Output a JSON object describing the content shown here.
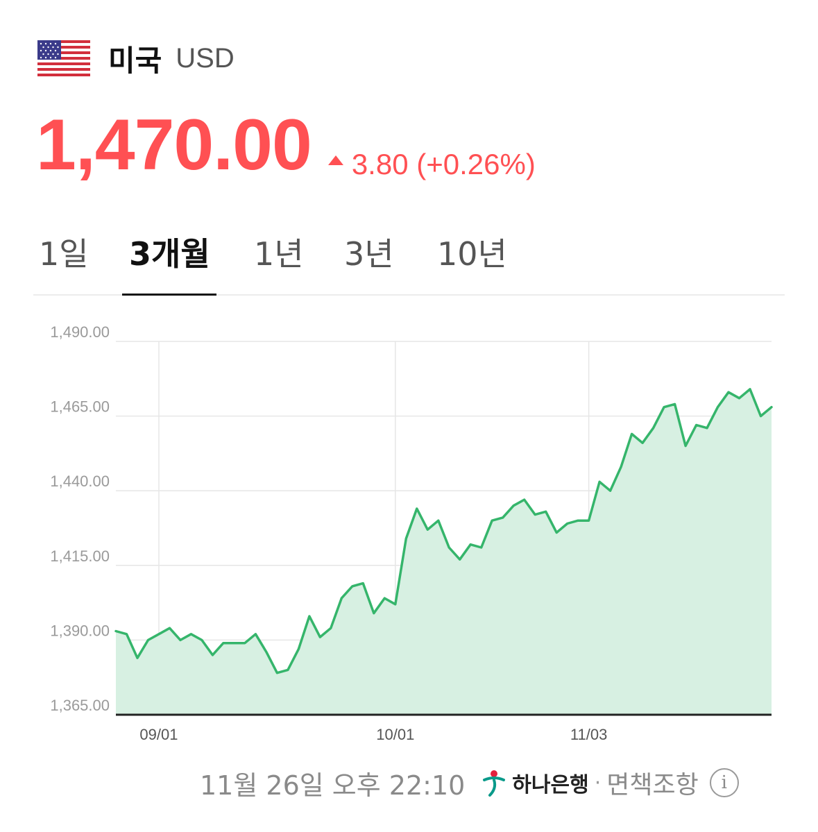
{
  "header": {
    "country": "미국",
    "currency_code": "USD",
    "flag_icon": "us-flag-icon"
  },
  "quote": {
    "price": "1,470.00",
    "direction": "up",
    "change": "3.80 (+0.26%)",
    "color": "#ff5053"
  },
  "tabs": [
    {
      "label": "1일",
      "active": false
    },
    {
      "label": "3개월",
      "active": true
    },
    {
      "label": "1년",
      "active": false
    },
    {
      "label": "3년",
      "active": false
    },
    {
      "label": "10년",
      "active": false
    }
  ],
  "chart_data": {
    "type": "area",
    "line_color": "#35b56b",
    "fill_color": "#d7f0e2",
    "ylim": [
      1365,
      1490
    ],
    "y_ticks": [
      "1,490.00",
      "1,465.00",
      "1,440.00",
      "1,415.00",
      "1,390.00",
      "1,365.00"
    ],
    "y_tick_values": [
      1490,
      1465,
      1440,
      1415,
      1390,
      1365
    ],
    "x_ticks": [
      {
        "label": "09/01",
        "index": 4
      },
      {
        "label": "10/01",
        "index": 26
      },
      {
        "label": "11/03",
        "index": 44
      }
    ],
    "grid": true,
    "values": [
      1393,
      1392,
      1384,
      1390,
      1392,
      1394,
      1390,
      1392,
      1390,
      1385,
      1389,
      1389,
      1389,
      1392,
      1386,
      1379,
      1380,
      1387,
      1398,
      1391,
      1394,
      1404,
      1408,
      1409,
      1399,
      1404,
      1402,
      1424,
      1434,
      1427,
      1430,
      1421,
      1417,
      1422,
      1421,
      1430,
      1431,
      1435,
      1437,
      1432,
      1433,
      1426,
      1429,
      1430,
      1430,
      1443,
      1440,
      1448,
      1459,
      1456,
      1461,
      1468,
      1469,
      1455,
      1462,
      1461,
      1468,
      1473,
      1471,
      1474,
      1465,
      1468
    ]
  },
  "footer": {
    "timestamp": "11월 26일 오후 22:10",
    "bank_name": "하나은행",
    "separator": "·",
    "disclaimer": "면책조항",
    "info_glyph": "i"
  }
}
